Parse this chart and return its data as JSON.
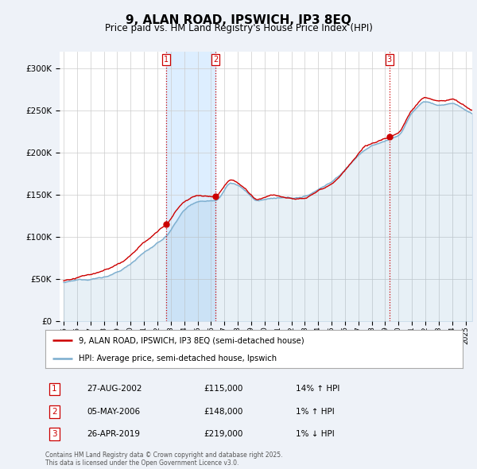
{
  "title": "9, ALAN ROAD, IPSWICH, IP3 8EQ",
  "subtitle": "Price paid vs. HM Land Registry's House Price Index (HPI)",
  "legend_property": "9, ALAN ROAD, IPSWICH, IP3 8EQ (semi-detached house)",
  "legend_hpi": "HPI: Average price, semi-detached house, Ipswich",
  "footnote": "Contains HM Land Registry data © Crown copyright and database right 2025.\nThis data is licensed under the Open Government Licence v3.0.",
  "sales": [
    {
      "num": 1,
      "date": "27-AUG-2002",
      "price": 115000,
      "hpi_pct": "14% ↑ HPI",
      "x_year": 2002.65
    },
    {
      "num": 2,
      "date": "05-MAY-2006",
      "price": 148000,
      "hpi_pct": "1% ↑ HPI",
      "x_year": 2006.34
    },
    {
      "num": 3,
      "date": "26-APR-2019",
      "price": 219000,
      "hpi_pct": "1% ↓ HPI",
      "x_year": 2019.32
    }
  ],
  "vline_color": "#cc0000",
  "property_color": "#cc0000",
  "hpi_color": "#7aadce",
  "shade_color": "#ddeeff",
  "bg_color": "#eef2f8",
  "plot_bg": "#ffffff",
  "ylim": [
    0,
    320000
  ],
  "xlim_start": 1994.7,
  "xlim_end": 2025.5
}
